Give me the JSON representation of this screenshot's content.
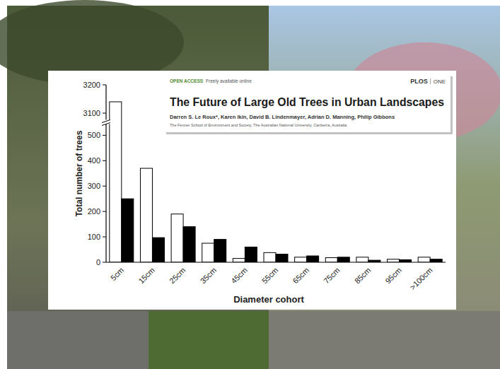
{
  "header": {
    "open_access": "OPEN ACCESS",
    "availability": "Freely available online",
    "journal": "PLOS",
    "journal_section": "ONE",
    "title": "The Future of Large Old Trees in Urban Landscapes",
    "authors": "Darren S. Le Roux*, Karen Ikin, David B. Lindenmayer, Adrian D. Manning, Philip Gibbons",
    "affiliation": "The Fenner School of Environment and Society, The Australian National University, Canberra, Australia"
  },
  "chart_data": {
    "type": "bar",
    "x_label": "Diameter cohort",
    "y_label": "Total number of trees",
    "categories": [
      "5cm",
      "15cm",
      "25cm",
      "35cm",
      "45cm",
      "55cm",
      "65cm",
      "75cm",
      "85cm",
      "95cm",
      ">100cm"
    ],
    "series": [
      {
        "color": "#ffffff",
        "values": [
          3140,
          370,
          190,
          75,
          15,
          38,
          20,
          18,
          20,
          12,
          20
        ]
      },
      {
        "color": "#000000",
        "values": [
          250,
          97,
          140,
          90,
          60,
          32,
          25,
          20,
          8,
          10,
          12
        ]
      }
    ],
    "ylim": [
      0,
      3200
    ],
    "y_break": [
      540,
      3080
    ],
    "yticks": [
      0,
      100,
      200,
      300,
      400,
      500,
      3100,
      3200
    ]
  }
}
